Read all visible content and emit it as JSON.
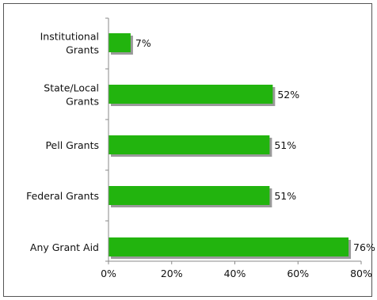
{
  "chart_data": {
    "type": "bar",
    "orientation": "horizontal",
    "title": "",
    "xlabel": "",
    "ylabel": "",
    "categories": [
      [
        "Institutional",
        "Grants"
      ],
      [
        "State/Local",
        "Grants"
      ],
      [
        "Pell Grants"
      ],
      [
        "Federal Grants"
      ],
      [
        "Any Grant Aid"
      ]
    ],
    "values": [
      7,
      52,
      51,
      51,
      76
    ],
    "value_labels": [
      "7%",
      "52%",
      "51%",
      "51%",
      "76%"
    ],
    "xlim": [
      0,
      80
    ],
    "xticks": [
      0,
      20,
      40,
      60,
      80
    ],
    "xtick_labels": [
      "0%",
      "20%",
      "40%",
      "60%",
      "80%"
    ],
    "grid": false,
    "legend": "none",
    "colors": {
      "bar": "#22b40e",
      "bar_shadow": "#9a9a9a",
      "axis": "#8a8a8a"
    }
  }
}
